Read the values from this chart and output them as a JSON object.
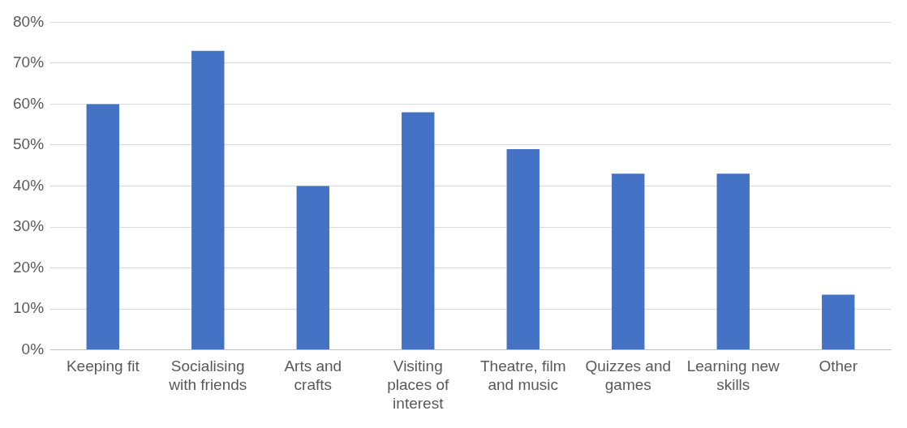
{
  "chart_data": {
    "type": "bar",
    "categories": [
      "Keeping fit",
      "Socialising with friends",
      "Arts and crafts",
      "Visiting places of interest",
      "Theatre, film and music",
      "Quizzes and games",
      "Learning new skills",
      "Other"
    ],
    "values": [
      60,
      73,
      40,
      58,
      49,
      43,
      43,
      13.5
    ],
    "color": "#4472c4",
    "ylim": [
      0,
      80
    ],
    "yticks": [
      {
        "value": 0,
        "label": "0%"
      },
      {
        "value": 10,
        "label": "10%"
      },
      {
        "value": 20,
        "label": "20%"
      },
      {
        "value": 30,
        "label": "30%"
      },
      {
        "value": 40,
        "label": "40%"
      },
      {
        "value": 50,
        "label": "50%"
      },
      {
        "value": 60,
        "label": "60%"
      },
      {
        "value": 70,
        "label": "70%"
      },
      {
        "value": 80,
        "label": "80%"
      }
    ],
    "grid": "y"
  }
}
